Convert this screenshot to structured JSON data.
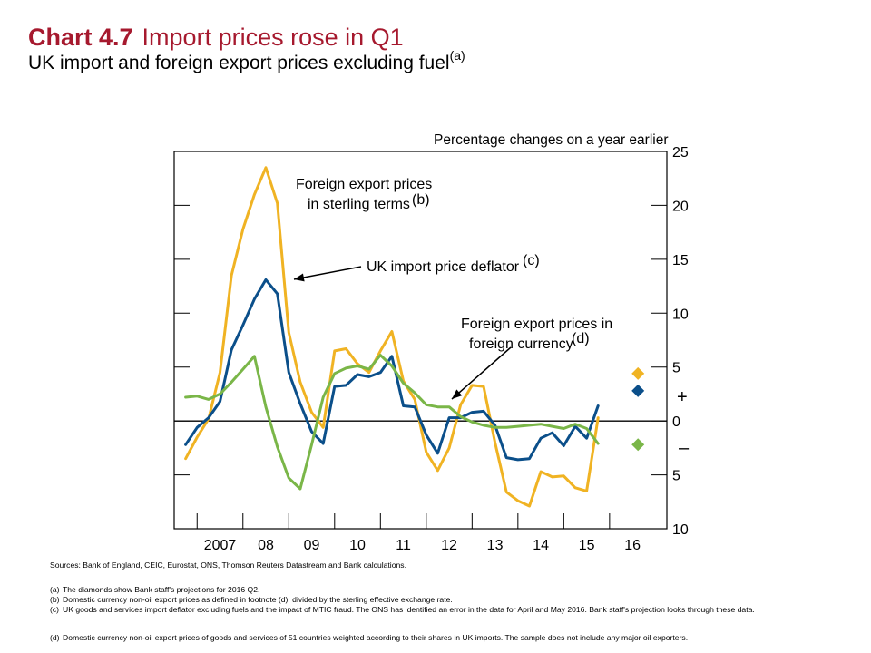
{
  "header": {
    "chart_number": "Chart 4.7",
    "title": "Import prices rose in Q1",
    "subtitle": "UK import and foreign export prices excluding fuel",
    "subtitle_note": "(a)"
  },
  "chart_data": {
    "type": "line",
    "ylabel": "Percentage changes on a year earlier",
    "y_axis_side": "right",
    "y_inverted_below_zero_labels": true,
    "ylim": [
      -10,
      25
    ],
    "yticks": [
      25,
      20,
      15,
      10,
      5,
      0,
      -5,
      -10
    ],
    "ytick_labels": [
      "25",
      "20",
      "15",
      "10",
      "5",
      "0",
      "5",
      "10"
    ],
    "xlim": [
      2006.0,
      2016.75
    ],
    "xtick_labels": [
      "2007",
      "08",
      "09",
      "10",
      "11",
      "12",
      "13",
      "14",
      "15",
      "16"
    ],
    "x_label_positions": [
      2007.0,
      2008.0,
      2009.0,
      2010.0,
      2011.0,
      2012.0,
      2013.0,
      2014.0,
      2015.0,
      2016.0
    ],
    "x_tick_positions": [
      2006.5,
      2007.5,
      2008.5,
      2009.5,
      2010.5,
      2011.5,
      2012.5,
      2013.5,
      2014.5,
      2015.5
    ],
    "sign_markers": [
      "+",
      "–"
    ],
    "series": [
      {
        "name": "Foreign export prices in sterling terms",
        "note": "(b)",
        "color": "#f0b323",
        "x": [
          2006.25,
          2006.5,
          2006.75,
          2007.0,
          2007.25,
          2007.5,
          2007.75,
          2008.0,
          2008.25,
          2008.5,
          2008.75,
          2009.0,
          2009.25,
          2009.5,
          2009.75,
          2010.0,
          2010.25,
          2010.5,
          2010.75,
          2011.0,
          2011.25,
          2011.5,
          2011.75,
          2012.0,
          2012.25,
          2012.5,
          2012.75,
          2013.0,
          2013.25,
          2013.5,
          2013.75,
          2014.0,
          2014.25,
          2014.5,
          2014.75,
          2015.0,
          2015.25,
          2015.5,
          2015.75
        ],
        "values": [
          -3.5,
          -1.5,
          0.2,
          4.5,
          13.5,
          17.8,
          21.0,
          23.5,
          20.2,
          8.2,
          3.6,
          0.8,
          -0.6,
          6.5,
          6.7,
          5.3,
          4.5,
          6.5,
          8.3,
          3.7,
          2.0,
          -2.9,
          -4.6,
          -2.5,
          1.5,
          3.3,
          3.2,
          -2.0,
          -6.6,
          -7.4,
          -7.9,
          -4.7,
          -5.2,
          -5.1,
          -6.2,
          -6.5,
          0.3,
          null,
          null
        ]
      },
      {
        "name": "UK import price deflator",
        "note": "(c)",
        "color": "#0b4f8a",
        "x": [
          2006.25,
          2006.5,
          2006.75,
          2007.0,
          2007.25,
          2007.5,
          2007.75,
          2008.0,
          2008.25,
          2008.5,
          2008.75,
          2009.0,
          2009.25,
          2009.5,
          2009.75,
          2010.0,
          2010.25,
          2010.5,
          2010.75,
          2011.0,
          2011.25,
          2011.5,
          2011.75,
          2012.0,
          2012.25,
          2012.5,
          2012.75,
          2013.0,
          2013.25,
          2013.5,
          2013.75,
          2014.0,
          2014.25,
          2014.5,
          2014.75,
          2015.0,
          2015.25,
          2015.5,
          2015.75
        ],
        "values": [
          -2.2,
          -0.6,
          0.3,
          1.8,
          6.6,
          8.9,
          11.3,
          13.1,
          11.8,
          4.5,
          1.6,
          -1.0,
          -2.1,
          3.2,
          3.3,
          4.3,
          4.1,
          4.5,
          6.0,
          1.4,
          1.3,
          -1.3,
          -3.0,
          0.3,
          0.3,
          0.8,
          0.9,
          -0.4,
          -3.4,
          -3.6,
          -3.5,
          -1.6,
          -1.1,
          -2.3,
          -0.5,
          -1.6,
          1.4,
          null,
          null
        ]
      },
      {
        "name": "Foreign export prices in foreign currency",
        "note": "(d)",
        "color": "#7ab648",
        "x": [
          2006.25,
          2006.5,
          2006.75,
          2007.0,
          2007.25,
          2007.5,
          2007.75,
          2008.0,
          2008.25,
          2008.5,
          2008.75,
          2009.0,
          2009.25,
          2009.5,
          2009.75,
          2010.0,
          2010.25,
          2010.5,
          2010.75,
          2011.0,
          2011.25,
          2011.5,
          2011.75,
          2012.0,
          2012.25,
          2012.5,
          2012.75,
          2013.0,
          2013.25,
          2013.5,
          2013.75,
          2014.0,
          2014.25,
          2014.5,
          2014.75,
          2015.0,
          2015.25,
          2015.5,
          2015.75
        ],
        "values": [
          2.2,
          2.3,
          2.0,
          2.5,
          3.6,
          4.8,
          6.0,
          1.3,
          -2.4,
          -5.3,
          -6.3,
          -2.2,
          2.2,
          4.4,
          4.9,
          5.1,
          4.8,
          6.1,
          5.1,
          3.5,
          2.6,
          1.5,
          1.3,
          1.3,
          0.4,
          -0.1,
          -0.4,
          -0.6,
          -0.6,
          -0.5,
          -0.4,
          -0.3,
          -0.5,
          -0.7,
          -0.3,
          -0.7,
          -2.1,
          null,
          null
        ]
      }
    ],
    "projections_2016Q2": [
      {
        "series": "Foreign export prices in sterling terms",
        "x": 2016.12,
        "value": 4.4,
        "color": "#f0b323"
      },
      {
        "series": "UK import price deflator",
        "x": 2016.12,
        "value": 2.8,
        "color": "#0b4f8a"
      },
      {
        "series": "Foreign export prices in foreign currency",
        "x": 2016.12,
        "value": -2.2,
        "color": "#7ab648"
      }
    ],
    "annotations": [
      {
        "line1": "Foreign export prices",
        "line2": "in sterling terms",
        "note": "(b)"
      },
      {
        "line1": "UK import price deflator",
        "note": "(c)"
      },
      {
        "line1": "Foreign export prices in",
        "line2": "foreign currency",
        "note": "(d)"
      }
    ]
  },
  "sources": "Sources:  Bank of England, CEIC, Eurostat, ONS, Thomson Reuters Datastream and Bank calculations.",
  "footnotes": [
    {
      "label": "(a)",
      "text": "The diamonds show Bank staff's projections for 2016 Q2."
    },
    {
      "label": "(b)",
      "text": "Domestic currency non-oil export prices as defined in footnote (d), divided by the sterling effective exchange rate."
    },
    {
      "label": "(c)",
      "text": "UK goods and services import deflator excluding fuels and the impact of MTIC fraud.  The ONS has identified an error in the data for April and May 2016.  Bank staff's projection looks through these data."
    },
    {
      "label": "(d)",
      "text": "Domestic currency non-oil export prices of goods and services of 51 countries weighted according to their shares in UK imports.  The sample does not include any major oil exporters."
    }
  ]
}
